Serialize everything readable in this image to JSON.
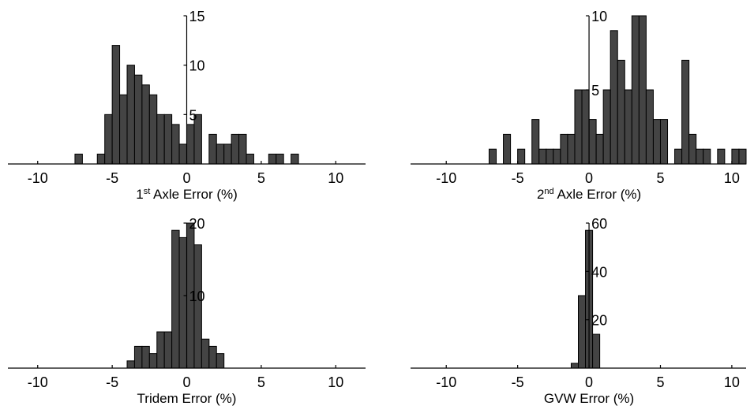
{
  "chart_data": [
    {
      "type": "histogram",
      "xlabel": [
        "1",
        "st",
        " Axle Error (%)"
      ],
      "color": "#444444",
      "bins": [
        -7.5,
        -7,
        -6.5,
        -6,
        -5.5,
        -5,
        -4.5,
        -4,
        -3.5,
        -3,
        -2.5,
        -2,
        -1.5,
        -1,
        -0.5,
        0,
        0.5,
        1,
        1.5,
        2,
        2.5,
        3,
        3.5,
        4,
        4.5,
        5,
        5.5,
        6,
        6.5,
        7,
        7.5
      ],
      "counts": [
        1,
        0,
        0,
        1,
        5,
        12,
        7,
        10,
        9,
        8,
        7,
        5,
        5,
        4,
        2,
        4,
        5,
        0,
        3,
        2,
        2,
        3,
        3,
        1,
        0,
        0,
        1,
        1,
        0,
        1
      ],
      "xlim": [
        -12,
        12
      ],
      "xticks": [
        -10,
        -5,
        0,
        5,
        10
      ],
      "ylim": [
        0,
        15
      ],
      "yticks": [
        5,
        10,
        15
      ]
    },
    {
      "type": "histogram",
      "xlabel": [
        "2",
        "nd",
        " Axle Error (%)"
      ],
      "color": "#444444",
      "bins": [
        -7,
        -6.5,
        -6,
        -5.5,
        -5,
        -4.5,
        -4,
        -3.5,
        -3,
        -2.5,
        -2,
        -1.5,
        -1,
        -0.5,
        0,
        0.5,
        1,
        1.5,
        2,
        2.5,
        3,
        3.5,
        4,
        4.5,
        5,
        5.5,
        6,
        6.5,
        7,
        7.5,
        8,
        8.5,
        9,
        9.5,
        10,
        10.5,
        11
      ],
      "counts": [
        1,
        0,
        2,
        0,
        1,
        0,
        3,
        1,
        1,
        1,
        2,
        2,
        5,
        5,
        3,
        2,
        5,
        9,
        7,
        5,
        10,
        10,
        5,
        3,
        3,
        0,
        1,
        7,
        2,
        1,
        1,
        0,
        1,
        0,
        1,
        1
      ],
      "xlim": [
        -12.5,
        11
      ],
      "xticks": [
        -10,
        -5,
        0,
        5,
        10
      ],
      "ylim": [
        0,
        10
      ],
      "yticks": [
        5,
        10
      ]
    },
    {
      "type": "histogram",
      "xlabel": [
        "Tridem Error (%)"
      ],
      "color": "#444444",
      "bins": [
        -4,
        -3.5,
        -3,
        -2.5,
        -2,
        -1.5,
        -1,
        -0.5,
        0,
        0.5,
        1,
        1.5,
        2,
        2.5
      ],
      "counts": [
        1,
        3,
        3,
        2,
        5,
        5,
        19,
        18,
        20,
        17,
        4,
        3,
        2
      ],
      "xlim": [
        -12,
        12
      ],
      "xticks": [
        -10,
        -5,
        0,
        5,
        10
      ],
      "ylim": [
        0,
        20
      ],
      "yticks": [
        10,
        20
      ]
    },
    {
      "type": "histogram",
      "xlabel": [
        "GVW Error (%)"
      ],
      "color": "#444444",
      "bins": [
        -1.25,
        -0.75,
        -0.25,
        0.25,
        0.75
      ],
      "counts": [
        2,
        30,
        57,
        14
      ],
      "xlim": [
        -12.5,
        11
      ],
      "xticks": [
        -10,
        -5,
        0,
        5,
        10
      ],
      "ylim": [
        0,
        60
      ],
      "yticks": [
        20,
        40,
        60
      ]
    }
  ]
}
